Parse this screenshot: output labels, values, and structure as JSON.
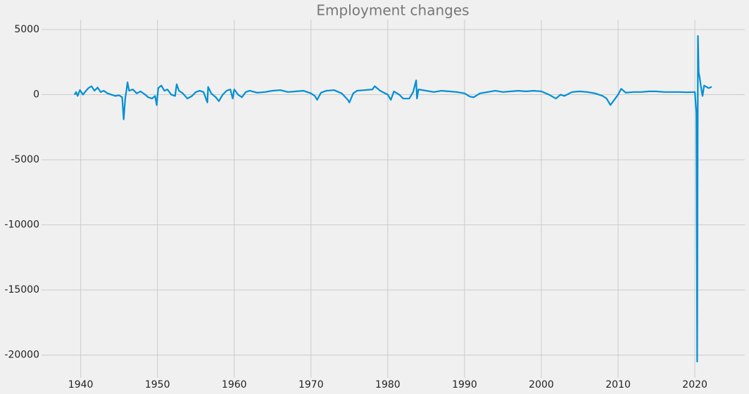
{
  "chart_data": {
    "type": "line",
    "title": "Employment changes",
    "x": [
      1939.2,
      1939.4,
      1939.6,
      1939.9,
      1940.3,
      1940.7,
      1941.0,
      1941.4,
      1941.8,
      1942.2,
      1942.6,
      1943.0,
      1943.5,
      1944.0,
      1944.5,
      1945.0,
      1945.4,
      1945.6,
      1945.8,
      1946.0,
      1946.1,
      1946.3,
      1946.8,
      1947.3,
      1947.8,
      1948.3,
      1948.8,
      1949.3,
      1949.7,
      1949.9,
      1950.1,
      1950.5,
      1950.9,
      1951.3,
      1951.8,
      1952.3,
      1952.5,
      1952.8,
      1953.3,
      1953.9,
      1954.5,
      1955.0,
      1955.5,
      1956.0,
      1956.5,
      1956.6,
      1957.0,
      1957.6,
      1958.0,
      1958.5,
      1959.0,
      1959.5,
      1959.8,
      1960.0,
      1960.5,
      1961.0,
      1961.5,
      1962.0,
      1963,
      1964,
      1965,
      1966,
      1967,
      1968,
      1969,
      1970.0,
      1970.5,
      1970.8,
      1971.3,
      1972,
      1973,
      1974,
      1974.8,
      1975.0,
      1975.5,
      1976,
      1977,
      1978,
      1978.3,
      1979,
      1980,
      1980.4,
      1980.8,
      1981.5,
      1982,
      1982.8,
      1983.3,
      1983.7,
      1983.8,
      1984,
      1985,
      1986,
      1987,
      1988,
      1989,
      1990,
      1990.7,
      1991.2,
      1992,
      1993,
      1994,
      1995,
      1996,
      1997,
      1998,
      1999,
      2000,
      2001,
      2001.9,
      2002.5,
      2003,
      2004,
      2005,
      2006,
      2007,
      2008,
      2008.5,
      2009.0,
      2009.5,
      2010,
      2010.4,
      2011,
      2012,
      2013,
      2014,
      2015,
      2016,
      2017,
      2018,
      2019,
      2020.0,
      2020.2,
      2020.3,
      2020.4,
      2020.5,
      2020.6,
      2020.9,
      2021.0,
      2021.2,
      2021.5,
      2021.8,
      2022.2
    ],
    "series": [
      {
        "color": "#008fd5",
        "values": [
          0,
          200,
          -100,
          350,
          0,
          300,
          500,
          650,
          300,
          550,
          200,
          300,
          100,
          0,
          -100,
          -50,
          -200,
          -1900,
          -300,
          500,
          950,
          300,
          400,
          100,
          250,
          50,
          -200,
          -300,
          -100,
          -800,
          500,
          700,
          300,
          400,
          0,
          -100,
          800,
          300,
          100,
          -300,
          -100,
          200,
          300,
          200,
          -600,
          600,
          100,
          -200,
          -500,
          0,
          300,
          400,
          -300,
          400,
          0,
          -200,
          200,
          300,
          150,
          200,
          300,
          350,
          200,
          250,
          300,
          100,
          -100,
          -400,
          150,
          300,
          350,
          100,
          -400,
          -600,
          100,
          300,
          350,
          400,
          650,
          300,
          0,
          -400,
          250,
          0,
          -300,
          -300,
          200,
          1100,
          -300,
          400,
          300,
          200,
          300,
          250,
          200,
          100,
          -150,
          -200,
          100,
          200,
          300,
          200,
          250,
          300,
          250,
          300,
          250,
          0,
          -300,
          0,
          -100,
          200,
          250,
          200,
          100,
          -100,
          -300,
          -800,
          -400,
          0,
          450,
          150,
          200,
          200,
          250,
          250,
          200,
          200,
          200,
          180,
          200,
          -1400,
          -20493,
          4505,
          1700,
          1400,
          200,
          -100,
          700,
          600,
          500,
          600
        ]
      }
    ],
    "xlim": [
      1934.9,
      2026.5
    ],
    "ylim": [
      -21743,
      5755
    ],
    "xticks": [
      1940,
      1950,
      1960,
      1970,
      1980,
      1990,
      2000,
      2010,
      2020
    ],
    "yticks": [
      -20000,
      -15000,
      -10000,
      -5000,
      0,
      5000
    ],
    "grid": true
  }
}
